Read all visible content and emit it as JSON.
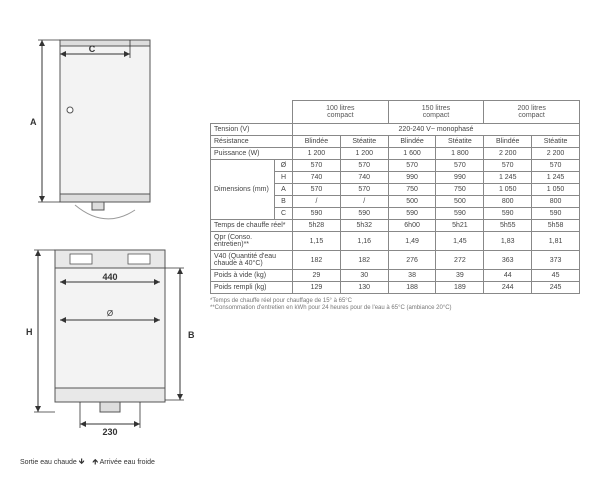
{
  "diagrams": {
    "top": {
      "labels": {
        "A": "A",
        "C": "C"
      }
    },
    "bottom": {
      "labels": {
        "H": "H",
        "B": "B",
        "diam": "Ø",
        "w440": "440",
        "w230": "230"
      }
    },
    "legend": {
      "outlet": "Sortie eau chaude",
      "inlet": "Arrivée eau froide"
    },
    "colors": {
      "stroke": "#555",
      "fill": "#f3f3f3",
      "dark": "#333",
      "light": "#e8e8e8"
    }
  },
  "table": {
    "header_groups": [
      {
        "line1": "100 litres",
        "line2": "compact"
      },
      {
        "line1": "150 litres",
        "line2": "compact"
      },
      {
        "line1": "200 litres",
        "line2": "compact"
      }
    ],
    "sub_headers": [
      "Blindée",
      "Stéatite",
      "Blindée",
      "Stéatite",
      "Blindée",
      "Stéatite"
    ],
    "rows": [
      {
        "label": "Tension (V)",
        "span": true,
        "cells": [
          "220-240 V~ monophasé"
        ],
        "colspan": 6,
        "centered": true
      },
      {
        "label": "Résistance",
        "span": true,
        "cells": [
          "Blindée",
          "Stéatite",
          "Blindée",
          "Stéatite",
          "Blindée",
          "Stéatite"
        ]
      },
      {
        "label": "Puissance (W)",
        "span": true,
        "cells": [
          "1 200",
          "1 200",
          "1 600",
          "1 800",
          "2 200",
          "2 200"
        ]
      },
      {
        "label": "Dimensions (mm)",
        "sub": "Ø",
        "sublabel": true,
        "cells": [
          "570",
          "570",
          "570",
          "570",
          "570",
          "570"
        ],
        "rowspan": 5
      },
      {
        "label": "",
        "sub": "H",
        "cells": [
          "740",
          "740",
          "990",
          "990",
          "1 245",
          "1 245"
        ]
      },
      {
        "label": "",
        "sub": "A",
        "cells": [
          "570",
          "570",
          "750",
          "750",
          "1 050",
          "1 050"
        ]
      },
      {
        "label": "",
        "sub": "B",
        "cells": [
          "/",
          "/",
          "500",
          "500",
          "800",
          "800"
        ]
      },
      {
        "label": "",
        "sub": "C",
        "cells": [
          "590",
          "590",
          "590",
          "590",
          "590",
          "590"
        ]
      },
      {
        "label": "Temps de chauffe réel*",
        "span": true,
        "cells": [
          "5h28",
          "5h32",
          "6h00",
          "5h21",
          "5h55",
          "5h58"
        ]
      },
      {
        "label": "Qpr (Conso. entretien)**",
        "span": true,
        "cells": [
          "1,15",
          "1,16",
          "1,49",
          "1,45",
          "1,83",
          "1,81"
        ]
      },
      {
        "label": "V40 (Quantité d'eau chaude à 40°C)",
        "span": true,
        "cells": [
          "182",
          "182",
          "276",
          "272",
          "363",
          "373"
        ]
      },
      {
        "label": "Poids à vide (kg)",
        "span": true,
        "cells": [
          "29",
          "30",
          "38",
          "39",
          "44",
          "45"
        ]
      },
      {
        "label": "Poids rempli (kg)",
        "span": true,
        "cells": [
          "129",
          "130",
          "188",
          "189",
          "244",
          "245"
        ]
      }
    ]
  },
  "footnotes": [
    "*Temps de chauffe réel pour chauffage de 15° à 65°C",
    "**Consommation d'entretien en kWh pour 24 heures pour de l'eau à 65°C (ambiance 20°C)"
  ],
  "style": {
    "table_border": "#888",
    "text": "#444"
  }
}
